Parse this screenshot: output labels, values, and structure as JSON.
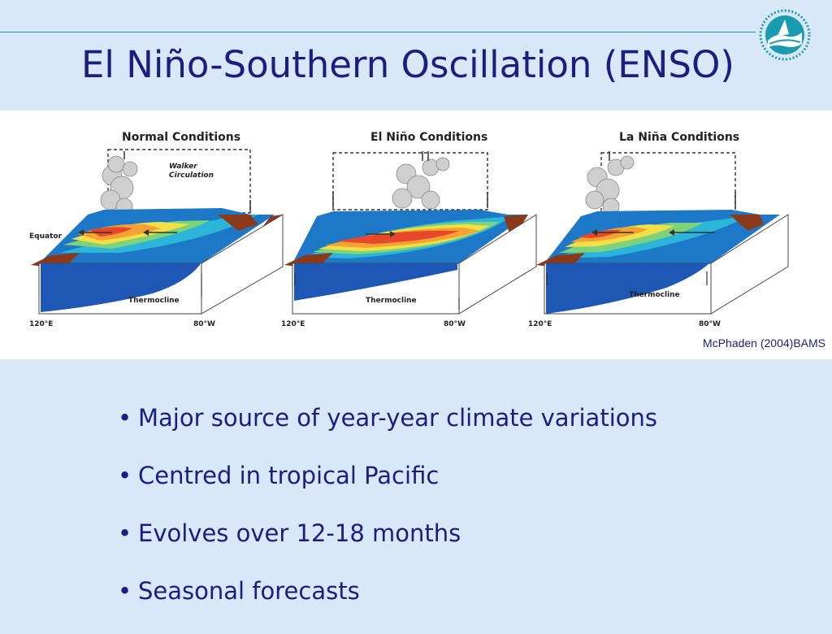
{
  "slide": {
    "title": "El Niño-Southern Oscillation (ENSO)",
    "citation": "McPhaden (2004)BAMS",
    "logo_icon": "wave-compass-logo-icon",
    "colors": {
      "title": "#1d1d80",
      "background": "#d9e8f8",
      "rule": "#1f9aa8"
    }
  },
  "figure": {
    "panels": [
      {
        "title": "Normal Conditions",
        "labels": {
          "circulation": "Walker Circulation",
          "equator": "Equator",
          "thermocline": "Thermocline",
          "lon_west": "120°E",
          "lon_east": "80°W"
        }
      },
      {
        "title": "El Niño Conditions",
        "labels": {
          "thermocline": "Thermocline",
          "lon_west": "120°E",
          "lon_east": "80°W"
        }
      },
      {
        "title": "La Niña Conditions",
        "labels": {
          "thermocline": "Thermocline",
          "lon_west": "120°E",
          "lon_east": "80°W"
        }
      }
    ]
  },
  "bullets": [
    {
      "marker": "•",
      "text": "Major source of year-year climate variations"
    },
    {
      "marker": "•",
      "text": "Centred in tropical Pacific"
    },
    {
      "marker": "•",
      "text": "Evolves over 12-18 months"
    },
    {
      "marker": "•",
      "text": "Seasonal forecasts"
    }
  ]
}
